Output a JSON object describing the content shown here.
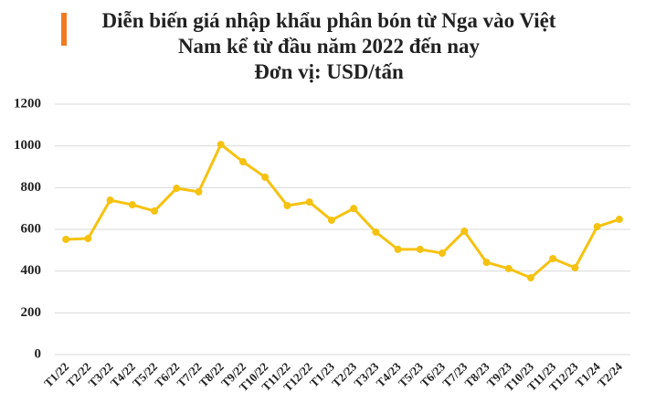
{
  "chart_data": {
    "type": "line",
    "title": [
      "Diễn biến giá nhập khẩu phân bón từ Nga vào Việt",
      "Nam kể từ đầu năm 2022 đến nay"
    ],
    "subtitle": "Đơn vị: USD/tấn",
    "categories": [
      "T1/22",
      "T2/22",
      "T3/22",
      "T4/22",
      "T5/22",
      "T6/22",
      "T7/22",
      "T8/22",
      "T9/22",
      "T10/22",
      "T11/22",
      "T12/22",
      "T1/23",
      "T2/23",
      "T3/23",
      "T4/23",
      "T5/23",
      "T6/23",
      "T7/23",
      "T8/23",
      "T9/23",
      "T10/23",
      "T11/23",
      "T12/23",
      "T1/24",
      "T2/24"
    ],
    "values": [
      552,
      556,
      740,
      718,
      688,
      797,
      780,
      1007,
      924,
      850,
      714,
      731,
      644,
      700,
      587,
      504,
      504,
      486,
      591,
      442,
      412,
      368,
      460,
      416,
      613,
      648
    ],
    "color": "#f5c211",
    "ylim": [
      0,
      1200
    ],
    "yticks": [
      0,
      200,
      400,
      600,
      800,
      1000,
      1200
    ],
    "grid": true
  }
}
